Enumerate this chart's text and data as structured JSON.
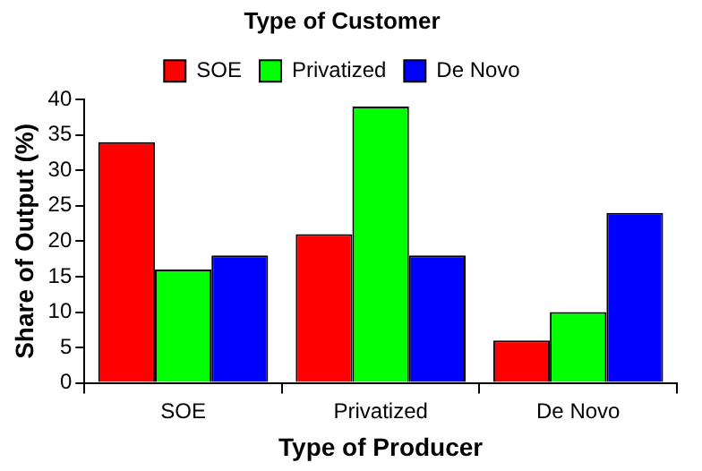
{
  "chart_data": {
    "type": "bar",
    "xlabel": "Type of Producer",
    "ylabel": "Share of Output (%)",
    "legend_title": "Type of Customer",
    "legend": "top",
    "categories": [
      "SOE",
      "Privatized",
      "De Novo"
    ],
    "series": [
      {
        "name": "SOE",
        "color": "#ff0000",
        "values": [
          34,
          21,
          6
        ]
      },
      {
        "name": "Privatized",
        "color": "#00ff00",
        "values": [
          16,
          39,
          10
        ]
      },
      {
        "name": "De Novo",
        "color": "#0000ff",
        "values": [
          18,
          18,
          24
        ]
      }
    ],
    "ylim": [
      0,
      40
    ],
    "yticks": [
      0,
      5,
      10,
      15,
      20,
      25,
      30,
      35,
      40
    ],
    "grid": false
  }
}
